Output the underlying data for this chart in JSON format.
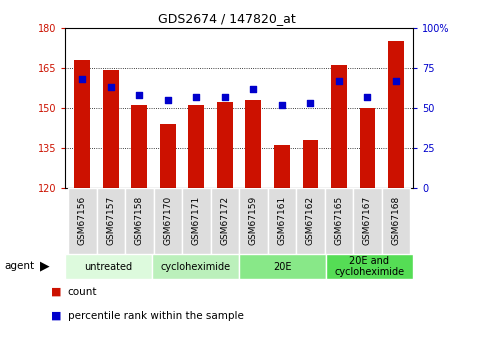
{
  "title": "GDS2674 / 147820_at",
  "samples": [
    "GSM67156",
    "GSM67157",
    "GSM67158",
    "GSM67170",
    "GSM67171",
    "GSM67172",
    "GSM67159",
    "GSM67161",
    "GSM67162",
    "GSM67165",
    "GSM67167",
    "GSM67168"
  ],
  "counts": [
    168,
    164,
    151,
    144,
    151,
    152,
    153,
    136,
    138,
    166,
    150,
    175
  ],
  "percentiles": [
    68,
    63,
    58,
    55,
    57,
    57,
    62,
    52,
    53,
    67,
    57,
    67
  ],
  "ymin": 120,
  "ymax": 180,
  "yticks": [
    120,
    135,
    150,
    165,
    180
  ],
  "right_yticks_vals": [
    0,
    25,
    50,
    75,
    100
  ],
  "right_yticks_labels": [
    "0",
    "25",
    "50",
    "75",
    "100%"
  ],
  "bar_color": "#cc1100",
  "dot_color": "#0000cc",
  "bar_width": 0.55,
  "groups": [
    {
      "label": "untreated",
      "start": 0,
      "end": 3,
      "color": "#ddfadd"
    },
    {
      "label": "cycloheximide",
      "start": 3,
      "end": 6,
      "color": "#bbf0bb"
    },
    {
      "label": "20E",
      "start": 6,
      "end": 9,
      "color": "#88e888"
    },
    {
      "label": "20E and\ncycloheximide",
      "start": 9,
      "end": 12,
      "color": "#55dd55"
    }
  ],
  "label_bg": "#dddddd",
  "left_axis_color": "#cc1100",
  "right_axis_color": "#0000cc",
  "legend_count_label": "count",
  "legend_pct_label": "percentile rank within the sample"
}
